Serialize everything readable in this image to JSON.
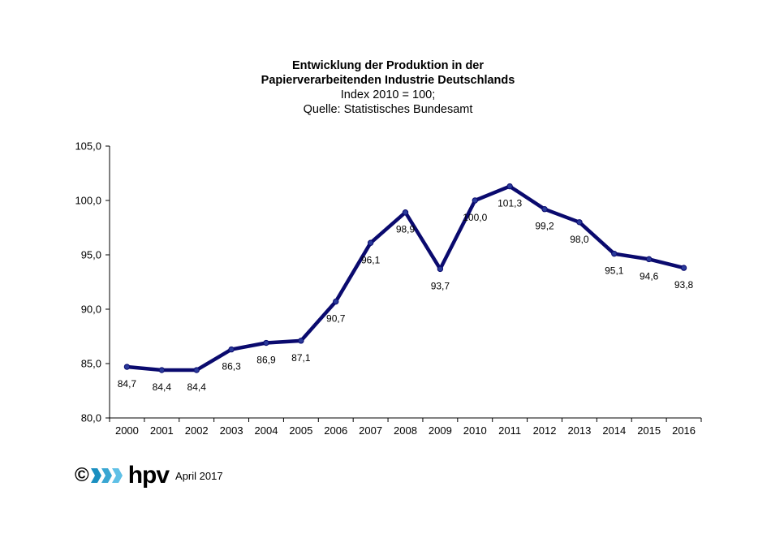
{
  "chart_data": {
    "type": "line",
    "title": "Entwicklung der Produktion in der",
    "title_line2": "Papierverarbeitenden Industrie Deutschlands",
    "subtitle": "Index 2010 = 100;",
    "source": "Quelle: Statistisches Bundesamt",
    "xlabel": "",
    "ylabel": "",
    "ylim": [
      80,
      105
    ],
    "yticks": [
      "80,0",
      "85,0",
      "90,0",
      "95,0",
      "100,0",
      "105,0"
    ],
    "ytick_values": [
      80,
      85,
      90,
      95,
      100,
      105
    ],
    "categories": [
      "2000",
      "2001",
      "2002",
      "2003",
      "2004",
      "2005",
      "2006",
      "2007",
      "2008",
      "2009",
      "2010",
      "2011",
      "2012",
      "2013",
      "2014",
      "2015",
      "2016"
    ],
    "series": [
      {
        "values": [
          84.7,
          84.4,
          84.4,
          86.3,
          86.9,
          87.1,
          90.7,
          96.1,
          98.9,
          93.7,
          100.0,
          101.3,
          99.2,
          98.0,
          95.1,
          94.6,
          93.8
        ],
        "labels": [
          "84,7",
          "84,4",
          "84,4",
          "86,3",
          "86,9",
          "87,1",
          "90,7",
          "96,1",
          "98,9",
          "93,7",
          "100,0",
          "101,3",
          "99,2",
          "98,0",
          "95,1",
          "94,6",
          "93,8"
        ],
        "color": "#0a0a6e"
      }
    ],
    "grid": false,
    "legend": "none"
  },
  "footer": {
    "copyright": "©",
    "logo_text": "hpv",
    "date": "April 2017",
    "logo_colors": [
      "#1a8fc0",
      "#3aa6d2",
      "#5fc0e6"
    ]
  }
}
